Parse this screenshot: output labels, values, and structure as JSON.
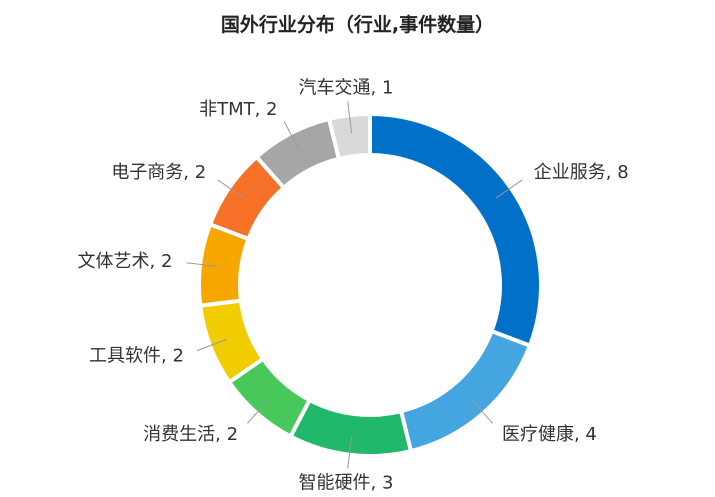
{
  "chart_data": {
    "type": "pie",
    "style": "donut",
    "title": "国外行业分布（行业,事件数量）",
    "categories": [
      "企业服务",
      "医疗健康",
      "智能硬件",
      "消费生活",
      "工具软件",
      "文体艺术",
      "电子商务",
      "非TMT",
      "汽车交通"
    ],
    "values": [
      8,
      4,
      3,
      2,
      2,
      2,
      2,
      2,
      1
    ],
    "colors": [
      "#0070C8",
      "#45A5E0",
      "#22B86A",
      "#48C85A",
      "#F0CC00",
      "#F7A600",
      "#F77028",
      "#A6A6A6",
      "#D9D9D9"
    ],
    "labels": [
      "企业服务, 8",
      "医疗健康, 4",
      "智能硬件, 3",
      "消费生活, 2",
      "工具软件, 2",
      "文体艺术, 2",
      "电子商务, 2",
      "非TMT, 2",
      "汽车交通, 1"
    ],
    "legend": "none"
  }
}
